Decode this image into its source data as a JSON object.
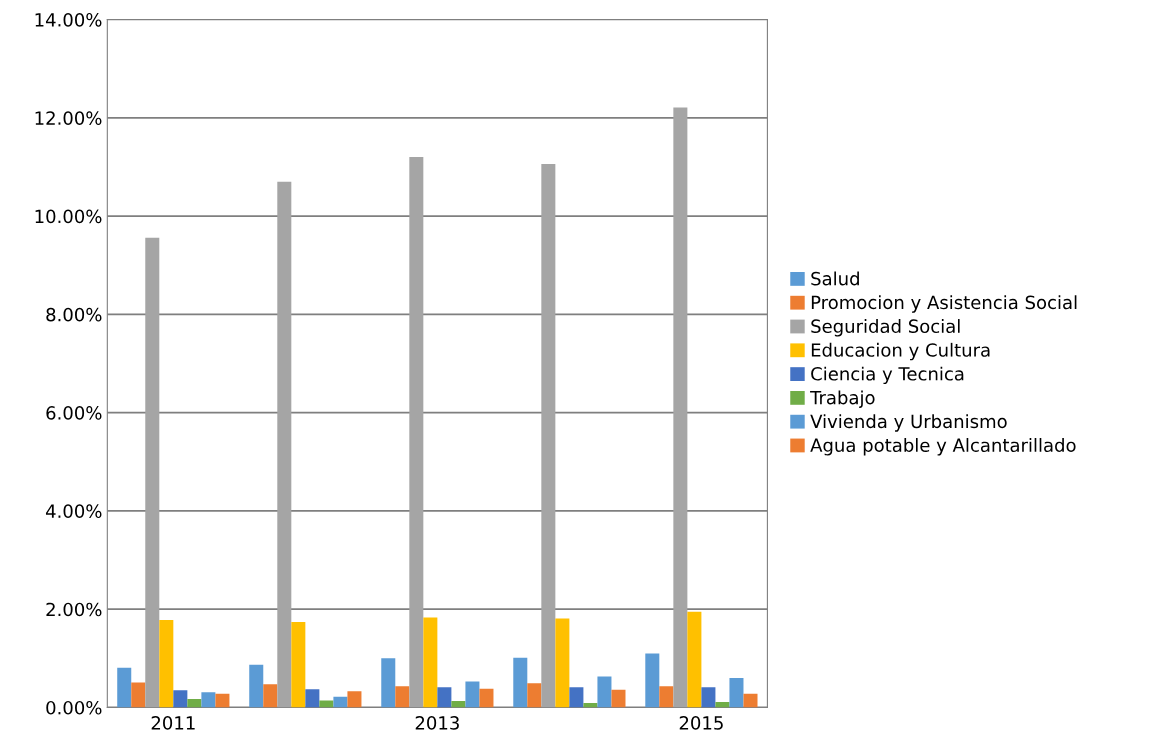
{
  "chart_data": {
    "type": "bar",
    "categories": [
      "2011",
      null,
      "2013",
      null,
      "2015"
    ],
    "series": [
      {
        "name": "Salud",
        "color": "#5b9bd5",
        "values": [
          0.81,
          0.87,
          1.0,
          1.01,
          1.1
        ]
      },
      {
        "name": "Promocion y Asistencia Social",
        "color": "#ed7d31",
        "values": [
          0.51,
          0.47,
          0.43,
          0.49,
          0.43
        ]
      },
      {
        "name": "Seguridad Social",
        "color": "#a5a5a5",
        "values": [
          9.56,
          10.7,
          11.2,
          11.06,
          12.21
        ]
      },
      {
        "name": "Educacion y Cultura",
        "color": "#ffc000",
        "values": [
          1.78,
          1.74,
          1.83,
          1.81,
          1.95
        ]
      },
      {
        "name": "Ciencia y Tecnica",
        "color": "#4472c4",
        "values": [
          0.35,
          0.37,
          0.41,
          0.41,
          0.41
        ]
      },
      {
        "name": "Trabajo",
        "color": "#70ad47",
        "values": [
          0.17,
          0.14,
          0.13,
          0.09,
          0.11
        ]
      },
      {
        "name": "Vivienda y Urbanismo",
        "color": "#5b9bd5",
        "values": [
          0.31,
          0.22,
          0.53,
          0.63,
          0.6
        ]
      },
      {
        "name": "Agua potable y Alcantarillado",
        "color": "#ed7d31",
        "values": [
          0.28,
          0.33,
          0.38,
          0.36,
          0.28
        ]
      }
    ],
    "ylim": [
      0,
      14
    ],
    "yticks": [
      {
        "value": 0,
        "label": "0.00%"
      },
      {
        "value": 2,
        "label": "2.00%"
      },
      {
        "value": 4,
        "label": "4.00%"
      },
      {
        "value": 6,
        "label": "6.00%"
      },
      {
        "value": 8,
        "label": "8.00%"
      },
      {
        "value": 10,
        "label": "10.00%"
      },
      {
        "value": 12,
        "label": "12.00%"
      },
      {
        "value": 14,
        "label": "14.00%"
      }
    ],
    "grid": "y",
    "legend": "right"
  }
}
